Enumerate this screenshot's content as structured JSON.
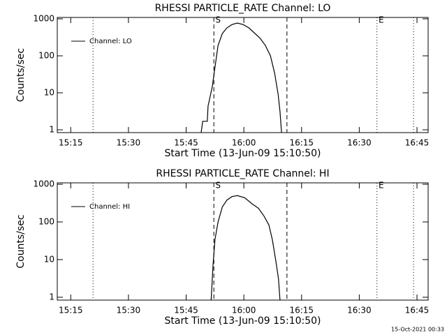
{
  "chart_data": [
    {
      "type": "line",
      "title": "RHESSI PARTICLE_RATE Channel: LO",
      "xlabel": "Start Time (13-Jun-09 15:10:50)",
      "ylabel": "Counts/sec",
      "log_y": true,
      "legend": "upper left",
      "grid": false,
      "xlim": [
        911.5,
        1007.9
      ],
      "ylim": [
        0.84,
        1090
      ],
      "xticks": [
        {
          "value": 915,
          "label": "15:15"
        },
        {
          "value": 930,
          "label": "15:30"
        },
        {
          "value": 945,
          "label": "15:45"
        },
        {
          "value": 960,
          "label": "16:00"
        },
        {
          "value": 975,
          "label": "16:15"
        },
        {
          "value": 990,
          "label": "16:30"
        },
        {
          "value": 1005,
          "label": "16:45"
        }
      ],
      "yticks": [
        1,
        10,
        100,
        1000
      ],
      "vlines": [
        {
          "x": 920.8,
          "style": "dotted"
        },
        {
          "x": 952.2,
          "style": "dashed"
        },
        {
          "x": 971.2,
          "style": "dashed"
        },
        {
          "x": 994.6,
          "style": "dotted"
        },
        {
          "x": 1004.1,
          "style": "dotted"
        }
      ],
      "annotations": [
        {
          "text": "S",
          "x": 952.2
        },
        {
          "text": "E",
          "x": 994.6
        }
      ],
      "series": [
        {
          "name": "Channel: LO",
          "color": "#000000",
          "x": [
            948.9,
            949.3,
            950.5,
            950.7,
            951.8,
            952.4,
            953.3,
            954.4,
            955.6,
            956.9,
            958.3,
            959.8,
            961.3,
            962.7,
            964.2,
            965.6,
            966.9,
            968.0,
            968.9,
            969.4,
            969.8
          ],
          "values": [
            0.84,
            1.7,
            1.7,
            4.4,
            14.8,
            42,
            190,
            400,
            570,
            700,
            770,
            700,
            570,
            420,
            300,
            190,
            100,
            34,
            9.2,
            3.1,
            0.84
          ]
        }
      ]
    },
    {
      "type": "line",
      "title": "RHESSI PARTICLE_RATE Channel: HI",
      "xlabel": "Start Time (13-Jun-09 15:10:50)",
      "ylabel": "Counts/sec",
      "log_y": true,
      "legend": "upper left",
      "grid": false,
      "xlim": [
        911.5,
        1007.9
      ],
      "ylim": [
        0.84,
        1090
      ],
      "xticks": [
        {
          "value": 915,
          "label": "15:15"
        },
        {
          "value": 930,
          "label": "15:30"
        },
        {
          "value": 945,
          "label": "15:45"
        },
        {
          "value": 960,
          "label": "16:00"
        },
        {
          "value": 975,
          "label": "16:15"
        },
        {
          "value": 990,
          "label": "16:30"
        },
        {
          "value": 1005,
          "label": "16:45"
        }
      ],
      "yticks": [
        1,
        10,
        100,
        1000
      ],
      "vlines": [
        {
          "x": 920.8,
          "style": "dotted"
        },
        {
          "x": 952.2,
          "style": "dashed"
        },
        {
          "x": 971.2,
          "style": "dashed"
        },
        {
          "x": 994.6,
          "style": "dotted"
        },
        {
          "x": 1004.1,
          "style": "dotted"
        }
      ],
      "annotations": [
        {
          "text": "S",
          "x": 952.2
        },
        {
          "text": "E",
          "x": 994.6
        }
      ],
      "series": [
        {
          "name": "Channel: HI",
          "color": "#000000",
          "x": [
            951.5,
            952.0,
            952.5,
            953.3,
            954.4,
            955.6,
            956.9,
            958.3,
            960.2,
            962.0,
            963.8,
            965.2,
            966.5,
            967.4,
            968.3,
            969.0,
            969.4
          ],
          "values": [
            0.84,
            7.5,
            34,
            100,
            250,
            380,
            470,
            500,
            440,
            310,
            230,
            145,
            83,
            34,
            9.3,
            3.1,
            0.84
          ]
        }
      ]
    }
  ],
  "timestamp": "15-Oct-2021 00:33"
}
